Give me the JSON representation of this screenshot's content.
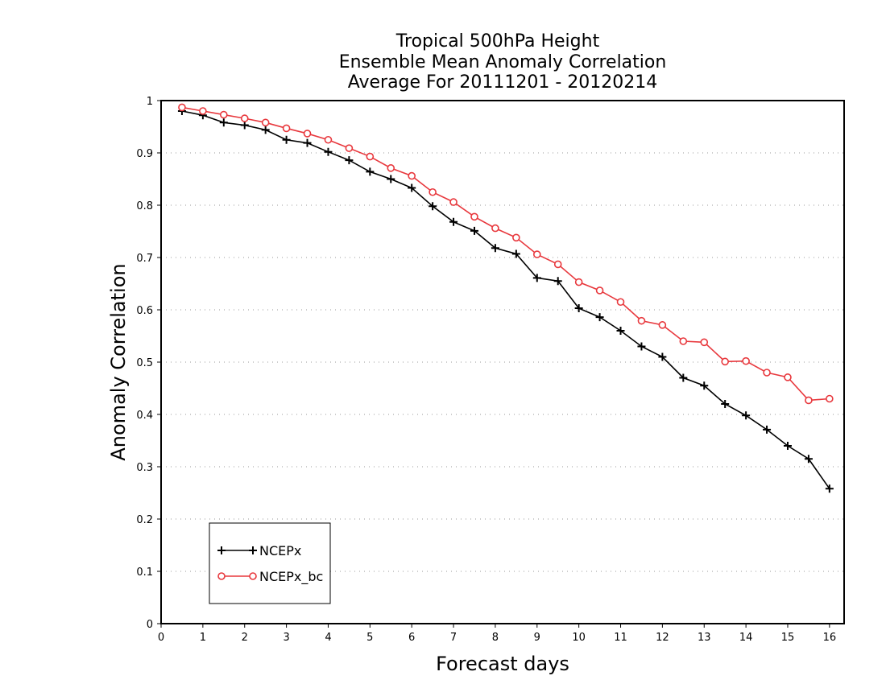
{
  "chart_data": {
    "type": "line",
    "title_lines": [
      "Tropical 500hPa Height",
      "Ensemble Mean Anomaly Correlation",
      "Average For 20111201 - 20120214"
    ],
    "xlabel": "Forecast days",
    "ylabel": "Anomaly Correlation",
    "xlim": [
      0,
      16.35
    ],
    "ylim": [
      0,
      1
    ],
    "x_ticks": [
      0,
      1,
      2,
      3,
      4,
      5,
      6,
      7,
      8,
      9,
      10,
      11,
      12,
      13,
      14,
      15,
      16
    ],
    "x_tick_labels": [
      "0",
      "1",
      "2",
      "3",
      "4",
      "5",
      "6",
      "7",
      "8",
      "9",
      "10",
      "11",
      "12",
      "13",
      "14",
      "15",
      "16"
    ],
    "y_ticks": [
      0,
      0.1,
      0.2,
      0.3,
      0.4,
      0.5,
      0.6,
      0.7,
      0.8,
      0.9,
      1
    ],
    "y_tick_labels": [
      "0",
      "0.1",
      "0.2",
      "0.3",
      "0.4",
      "0.5",
      "0.6",
      "0.7",
      "0.8",
      "0.9",
      "1"
    ],
    "grid": "horizontal dotted",
    "legend_position": "bottom-left",
    "x": [
      0.5,
      1,
      1.5,
      2,
      2.5,
      3,
      3.5,
      4,
      4.5,
      5,
      5.5,
      6,
      6.5,
      7,
      7.5,
      8,
      8.5,
      9,
      9.5,
      10,
      10.5,
      11,
      11.5,
      12,
      12.5,
      13,
      13.5,
      14,
      14.5,
      15,
      15.5,
      16
    ],
    "series": [
      {
        "name": "NCEPx",
        "color": "#000000",
        "marker": "plus",
        "values": [
          0.98,
          0.972,
          0.958,
          0.953,
          0.944,
          0.925,
          0.919,
          0.902,
          0.886,
          0.864,
          0.85,
          0.833,
          0.798,
          0.768,
          0.751,
          0.718,
          0.707,
          0.661,
          0.655,
          0.603,
          0.586,
          0.56,
          0.53,
          0.51,
          0.47,
          0.455,
          0.42,
          0.398,
          0.371,
          0.34,
          0.315,
          0.258
        ]
      },
      {
        "name": "NCEPx_bc",
        "color": "#e8383d",
        "marker": "circle",
        "values": [
          0.987,
          0.98,
          0.973,
          0.966,
          0.958,
          0.947,
          0.937,
          0.925,
          0.909,
          0.893,
          0.871,
          0.856,
          0.825,
          0.806,
          0.778,
          0.756,
          0.738,
          0.706,
          0.687,
          0.653,
          0.637,
          0.615,
          0.579,
          0.571,
          0.54,
          0.538,
          0.501,
          0.502,
          0.48,
          0.471,
          0.427,
          0.43
        ]
      }
    ]
  }
}
